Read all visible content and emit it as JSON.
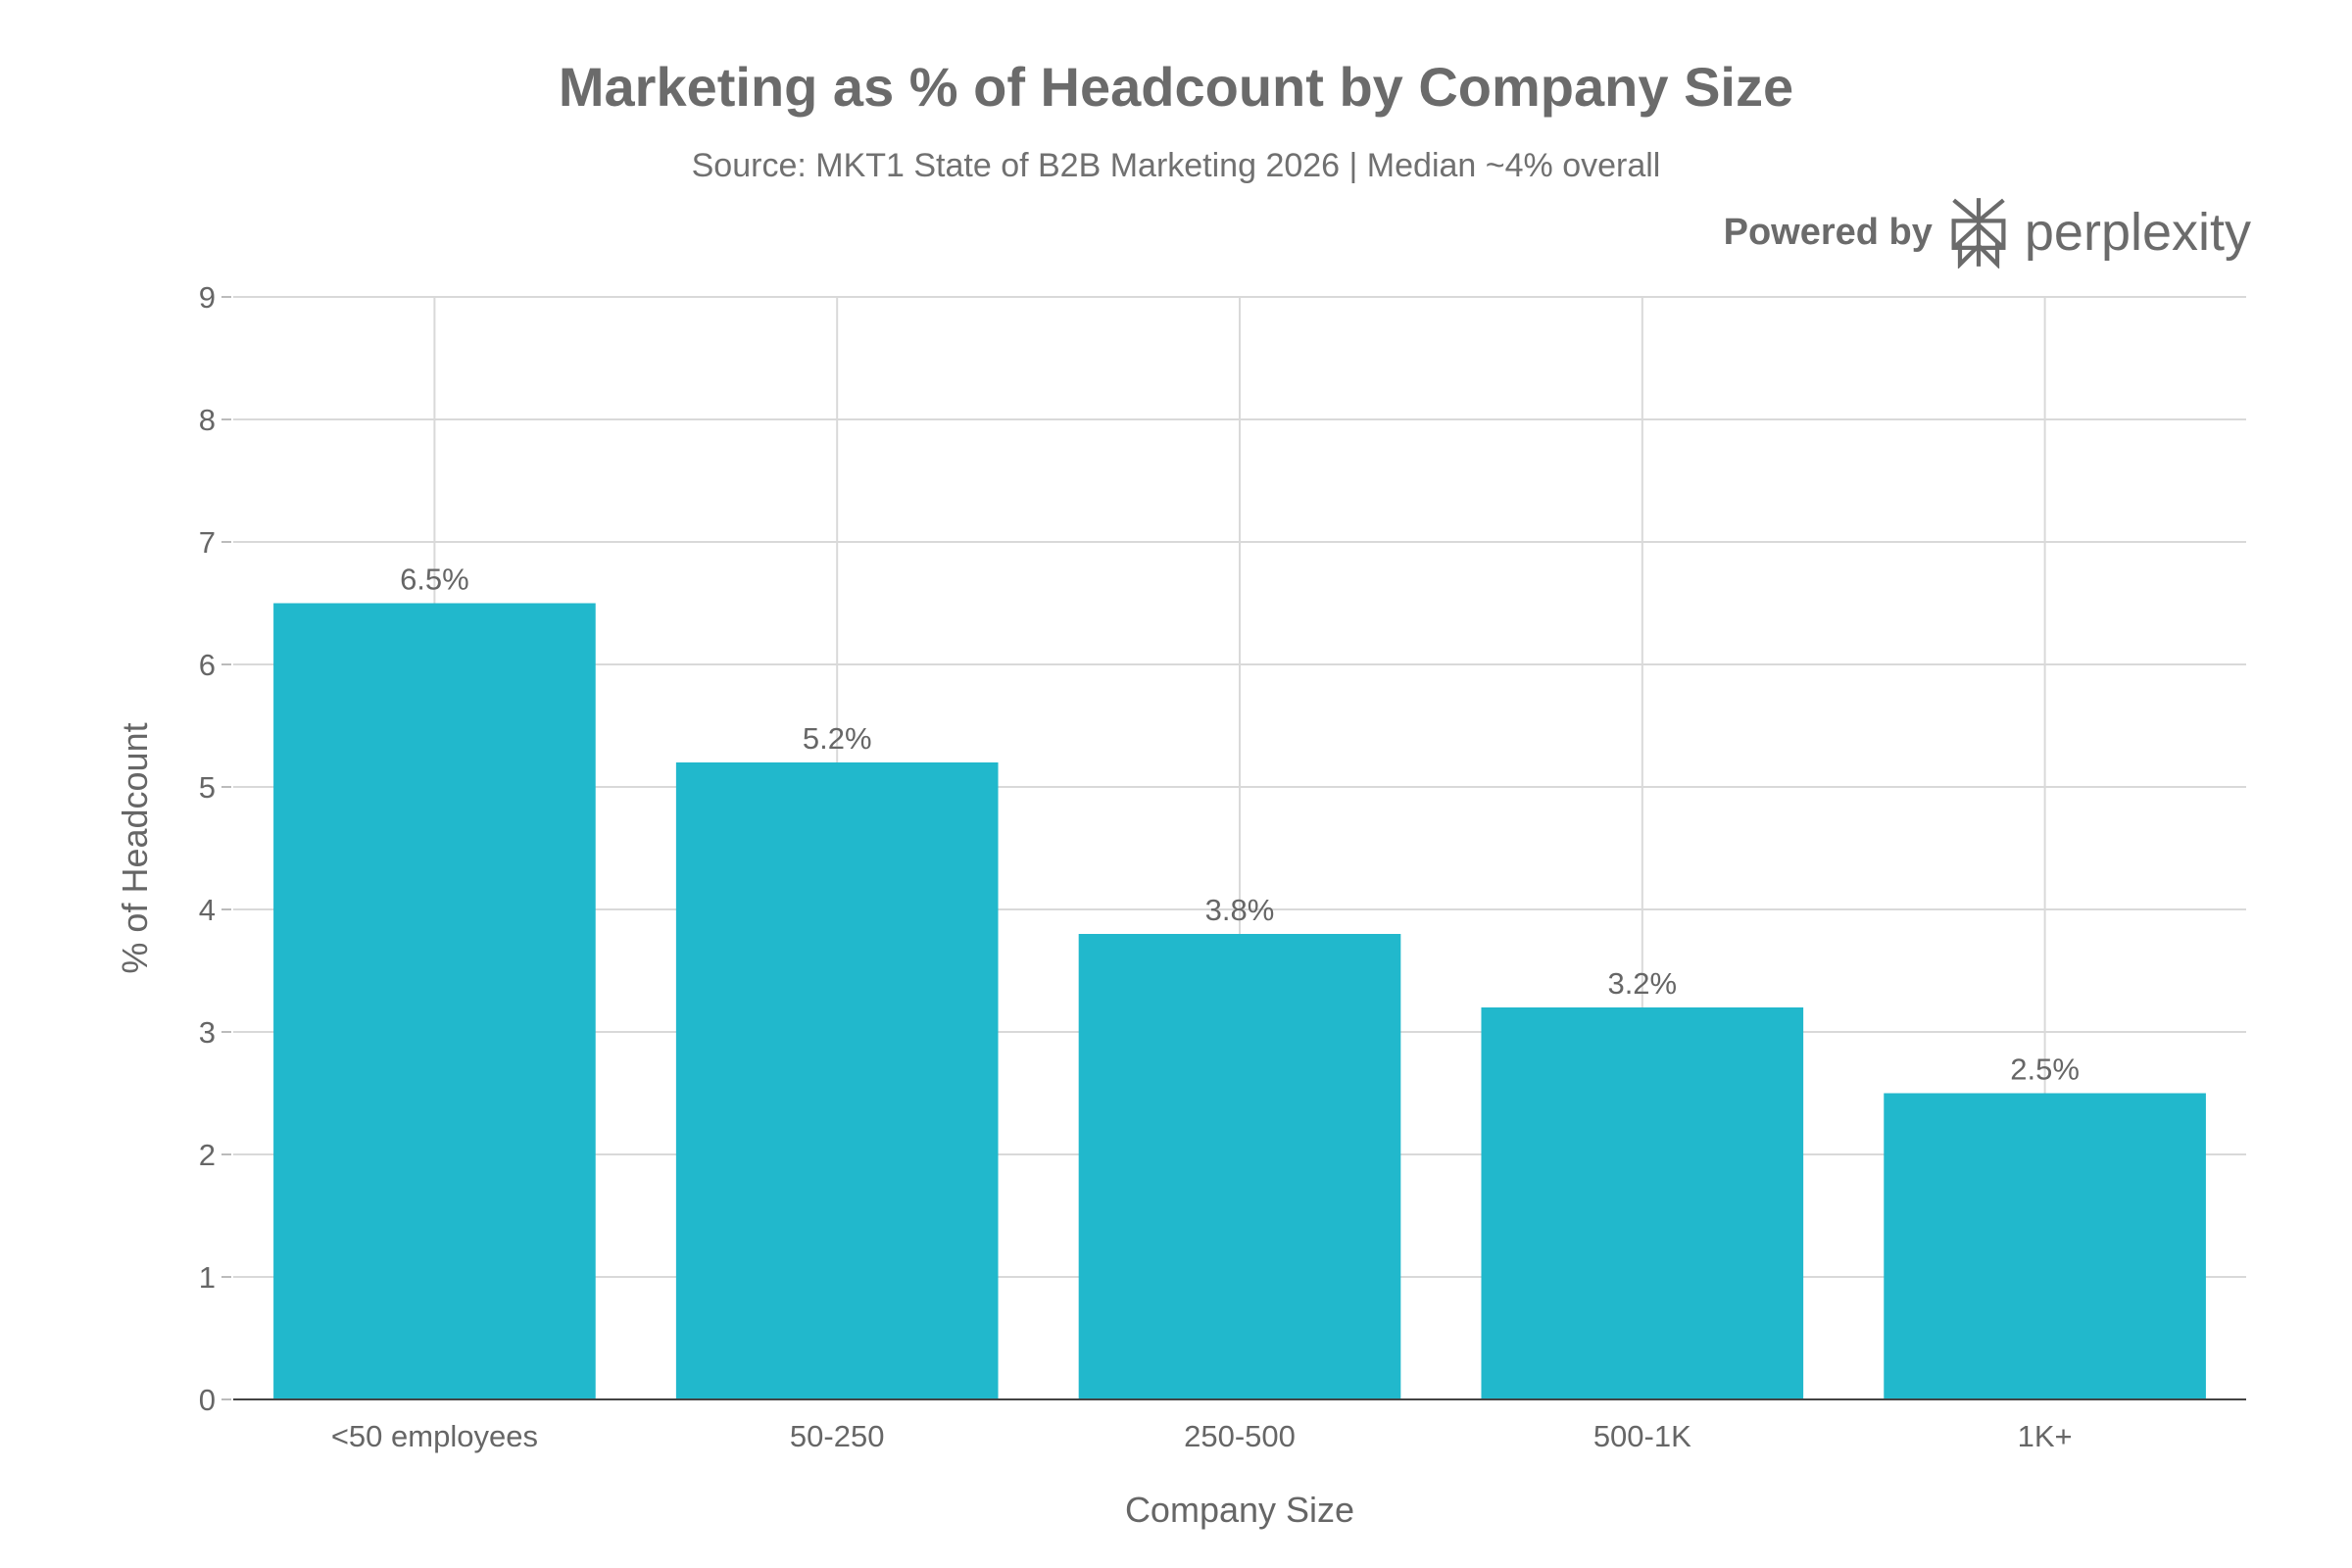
{
  "header": {
    "title": "Marketing as % of Headcount by Company Size",
    "subtitle": "Source: MKT1 State of B2B Marketing 2026 | Median ~4% overall"
  },
  "brand": {
    "powered_label": "Powered by",
    "name": "perplexity",
    "icon": "perplexity-logo-icon"
  },
  "colors": {
    "bar": "#21b8cc",
    "grid": "#d9d9d9",
    "axis": "#444444",
    "text": "#666666"
  },
  "chart_data": {
    "type": "bar",
    "title": "Marketing as % of Headcount by Company Size",
    "subtitle": "Source: MKT1 State of B2B Marketing 2026 | Median ~4% overall",
    "categories": [
      "<50 employees",
      "50-250",
      "250-500",
      "500-1K",
      "1K+"
    ],
    "values": [
      6.5,
      5.2,
      3.8,
      3.2,
      2.5
    ],
    "data_labels": [
      "6.5%",
      "5.2%",
      "3.8%",
      "3.2%",
      "2.5%"
    ],
    "xlabel": "Company Size",
    "ylabel": "% of Headcount",
    "ylim": [
      0,
      9
    ],
    "yticks": [
      0,
      1,
      2,
      3,
      4,
      5,
      6,
      7,
      8,
      9
    ],
    "grid": true,
    "legend": "none"
  }
}
